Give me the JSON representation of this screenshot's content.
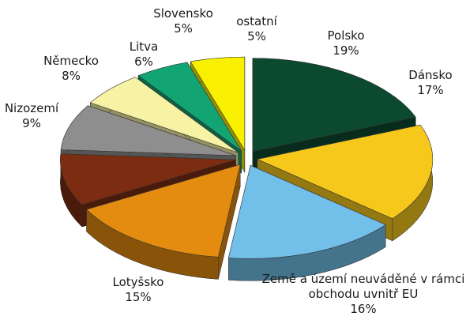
{
  "chart_data": {
    "type": "pie",
    "categories": [
      "Polsko",
      "Dánsko",
      "Země a území neuváděné v rámci obchodu uvnitř EU",
      "Lotyšsko",
      "Nizozemí",
      "Německo",
      "Litva",
      "Slovensko",
      "ostatní"
    ],
    "values": [
      19,
      17,
      16,
      15,
      9,
      8,
      6,
      5,
      5
    ],
    "value_labels": [
      "19%",
      "17%",
      "16%",
      "15%",
      "9%",
      "8%",
      "6%",
      "5%",
      "5%"
    ],
    "colors": [
      "#0c4a30",
      "#f6c81c",
      "#72c0ea",
      "#e48c10",
      "#7c2c10",
      "#8e8e8e",
      "#f8f2a4",
      "#12a472",
      "#f8f000"
    ]
  }
}
